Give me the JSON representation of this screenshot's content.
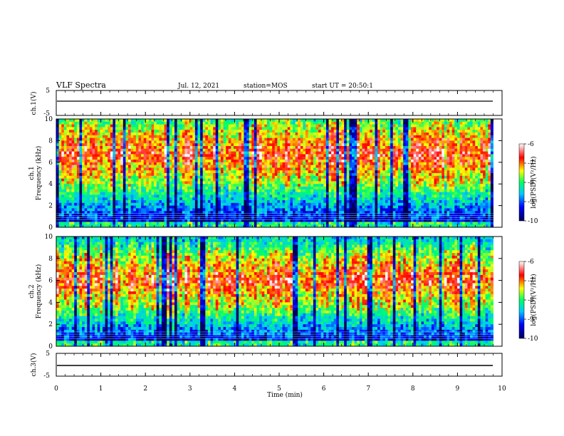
{
  "header": {
    "title": "VLF Spectra",
    "date": "Jul. 12, 2021",
    "station": "station=MOS",
    "start": "start UT = 20:50:1"
  },
  "chart_data": [
    {
      "type": "line",
      "panel": "ch1-waveform",
      "ylabel": "ch.1(V)",
      "ylim": [
        -5,
        5
      ],
      "yticks": [
        "5",
        "-5"
      ],
      "x": [
        0,
        9.8
      ],
      "values": [
        0,
        0
      ]
    },
    {
      "type": "heatmap",
      "panel": "ch1-spectrogram",
      "ylabel_line1": "ch.1",
      "ylabel_line2": "Frequency (kHz)",
      "ylim": [
        0,
        10
      ],
      "yticks": [
        "0",
        "2",
        "4",
        "6",
        "8",
        "10"
      ],
      "colorbar_label": "log(PSD)(V²/Hz)",
      "colorbar_ticks": [
        "-6",
        "-7",
        "-8",
        "-9",
        "-10"
      ],
      "color_range": [
        -10,
        -6
      ],
      "strong_band_khz": [
        4,
        9.5
      ]
    },
    {
      "type": "heatmap",
      "panel": "ch2-spectrogram",
      "ylabel_line1": "ch.2",
      "ylabel_line2": "Frequency (kHz)",
      "ylim": [
        0,
        10
      ],
      "yticks": [
        "0",
        "2",
        "4",
        "6",
        "8",
        "10"
      ],
      "colorbar_label": "log(PSD)(V²/Hz)",
      "colorbar_ticks": [
        "-6",
        "-7",
        "-8",
        "-9",
        "-10"
      ],
      "color_range": [
        -10,
        -6
      ],
      "strong_band_khz": [
        3.5,
        8.5
      ]
    },
    {
      "type": "line",
      "panel": "ch3-waveform",
      "ylabel": "ch.3(V)",
      "ylim": [
        -5,
        5
      ],
      "yticks": [
        "5",
        "-5"
      ],
      "x": [
        0,
        9.8
      ],
      "values": [
        0,
        0
      ]
    }
  ],
  "x_axis": {
    "label": "Time (min)",
    "ticks": [
      "0",
      "1",
      "2",
      "3",
      "4",
      "5",
      "6",
      "7",
      "8",
      "9",
      "10"
    ],
    "xlim": [
      0,
      10
    ]
  },
  "colors": {
    "colormap": [
      "#00005a",
      "#0000ff",
      "#00c8ff",
      "#00ff66",
      "#ffff00",
      "#ff0000",
      "#ffffff"
    ],
    "axis": "#000000"
  }
}
